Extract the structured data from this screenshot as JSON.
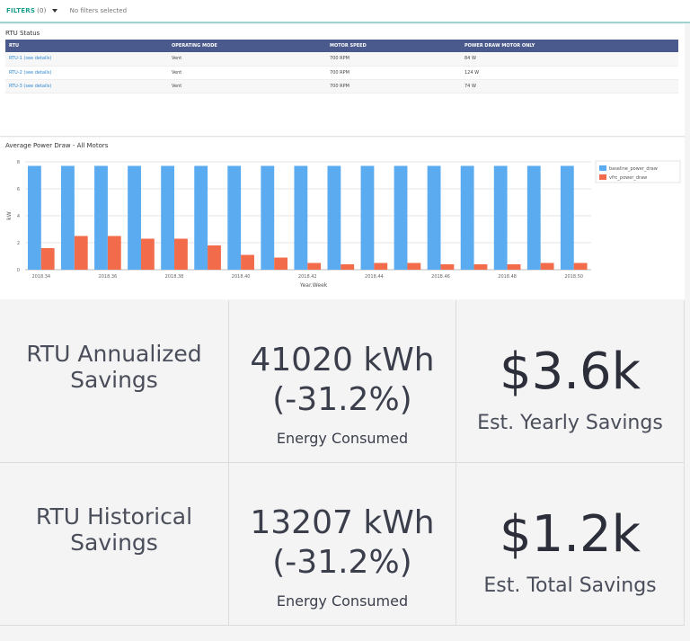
{
  "filters": {
    "label": "FILTERS",
    "count": "(0)",
    "status": "No filters selected"
  },
  "rtu_status": {
    "title": "RTU Status",
    "columns": [
      "RTU",
      "OPERATING MODE",
      "MOTOR SPEED",
      "POWER DRAW MOTOR ONLY"
    ],
    "rows": [
      [
        "RTU-1 (see details)",
        "Vent",
        "700 RPM",
        "84 W"
      ],
      [
        "RTU-2 (see details)",
        "Vent",
        "700 RPM",
        "124 W"
      ],
      [
        "RTU-3 (see details)",
        "Vent",
        "700 RPM",
        "74 W"
      ]
    ]
  },
  "chart_data": {
    "type": "bar",
    "title": "Average Power Draw - All Motors",
    "xlabel": "Year.Week",
    "ylabel": "kW",
    "ylim": [
      0,
      8
    ],
    "yticks": [
      0,
      2,
      4,
      6,
      8
    ],
    "categories": [
      "2018.34",
      "2018.35",
      "2018.36",
      "2018.37",
      "2018.38",
      "2018.39",
      "2018.40",
      "2018.41",
      "2018.42",
      "2018.43",
      "2018.44",
      "2018.45",
      "2018.46",
      "2018.47",
      "2018.48",
      "2018.49",
      "2018.50"
    ],
    "tick_labels": [
      "2018.34",
      "",
      "2018.36",
      "",
      "2018.38",
      "",
      "2018.40",
      "",
      "2018.42",
      "",
      "2018.44",
      "",
      "2018.46",
      "",
      "2018.48",
      "",
      "2018.50"
    ],
    "legend_position": "top-right",
    "series": [
      {
        "name": "baseline_power_draw",
        "color": "#5aabf0",
        "values": [
          7.7,
          7.7,
          7.7,
          7.7,
          7.7,
          7.7,
          7.7,
          7.7,
          7.7,
          7.7,
          7.7,
          7.7,
          7.7,
          7.7,
          7.7,
          7.7,
          7.7
        ]
      },
      {
        "name": "vfrc_power_draw",
        "color": "#f26b4a",
        "values": [
          1.6,
          2.5,
          2.5,
          2.3,
          2.3,
          1.8,
          1.1,
          0.9,
          0.5,
          0.4,
          0.5,
          0.5,
          0.4,
          0.4,
          0.4,
          0.5,
          0.5
        ]
      }
    ]
  },
  "tiles": {
    "annualized": {
      "title_line1": "RTU Annualized",
      "title_line2": "Savings",
      "energy_line1": "41020 kWh",
      "energy_line2": "(-31.2%)",
      "energy_caption": "Energy Consumed",
      "savings_value": "$3.6k",
      "savings_caption": "Est. Yearly Savings"
    },
    "historical": {
      "title_line1": "RTU Historical",
      "title_line2": "Savings",
      "energy_line1": "13207 kWh",
      "energy_line2": "(-31.2%)",
      "energy_caption": "Energy Consumed",
      "savings_value": "$1.2k",
      "savings_caption": "Est. Total Savings"
    }
  }
}
